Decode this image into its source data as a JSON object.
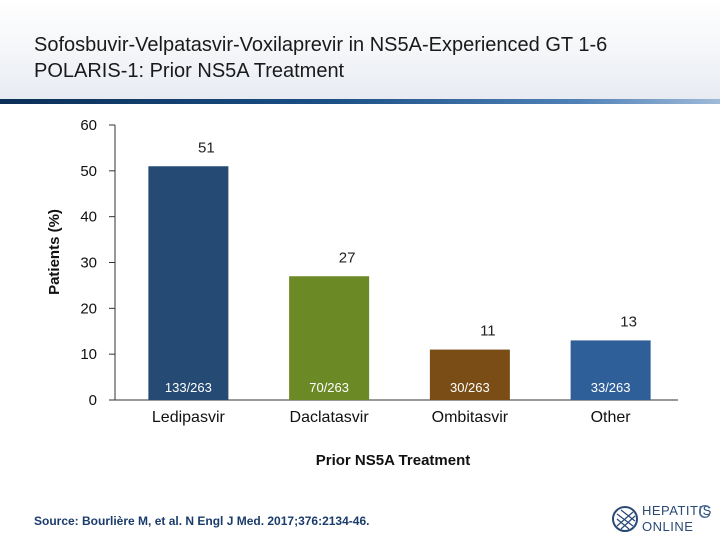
{
  "header": {
    "title_line1": "Sofosbuvir-Velpatasvir-Voxilaprevir in NS5A-Experienced GT 1-6",
    "title_line2": "POLARIS-1: Prior NS5A Treatment"
  },
  "chart_data": {
    "type": "bar",
    "title": "",
    "xlabel": "Prior NS5A Treatment",
    "ylabel": "Patients (%)",
    "ylim": [
      0,
      60
    ],
    "yticks": [
      0,
      10,
      20,
      30,
      40,
      50,
      60
    ],
    "categories": [
      "Ledipasvir",
      "Daclatasvir",
      "Ombitasvir",
      "Other"
    ],
    "values": [
      51,
      27,
      11,
      13
    ],
    "value_labels": [
      "51",
      "27",
      "11",
      "13"
    ],
    "count_labels": [
      "133/263",
      "70/263",
      "30/263",
      "33/263"
    ],
    "colors": [
      "#254a73",
      "#6b8a25",
      "#7a4d16",
      "#2f5f99"
    ],
    "grid": false,
    "legend": "none"
  },
  "footer": {
    "source": "Source: Bourlière M, et al. N Engl J Med. 2017;376:2134-46.",
    "logo_line1": "HEPATITIS",
    "logo_line2": "ONLINE",
    "logo_letter": "C",
    "logo_icon": "hepatitis-c-online-logo-icon"
  }
}
